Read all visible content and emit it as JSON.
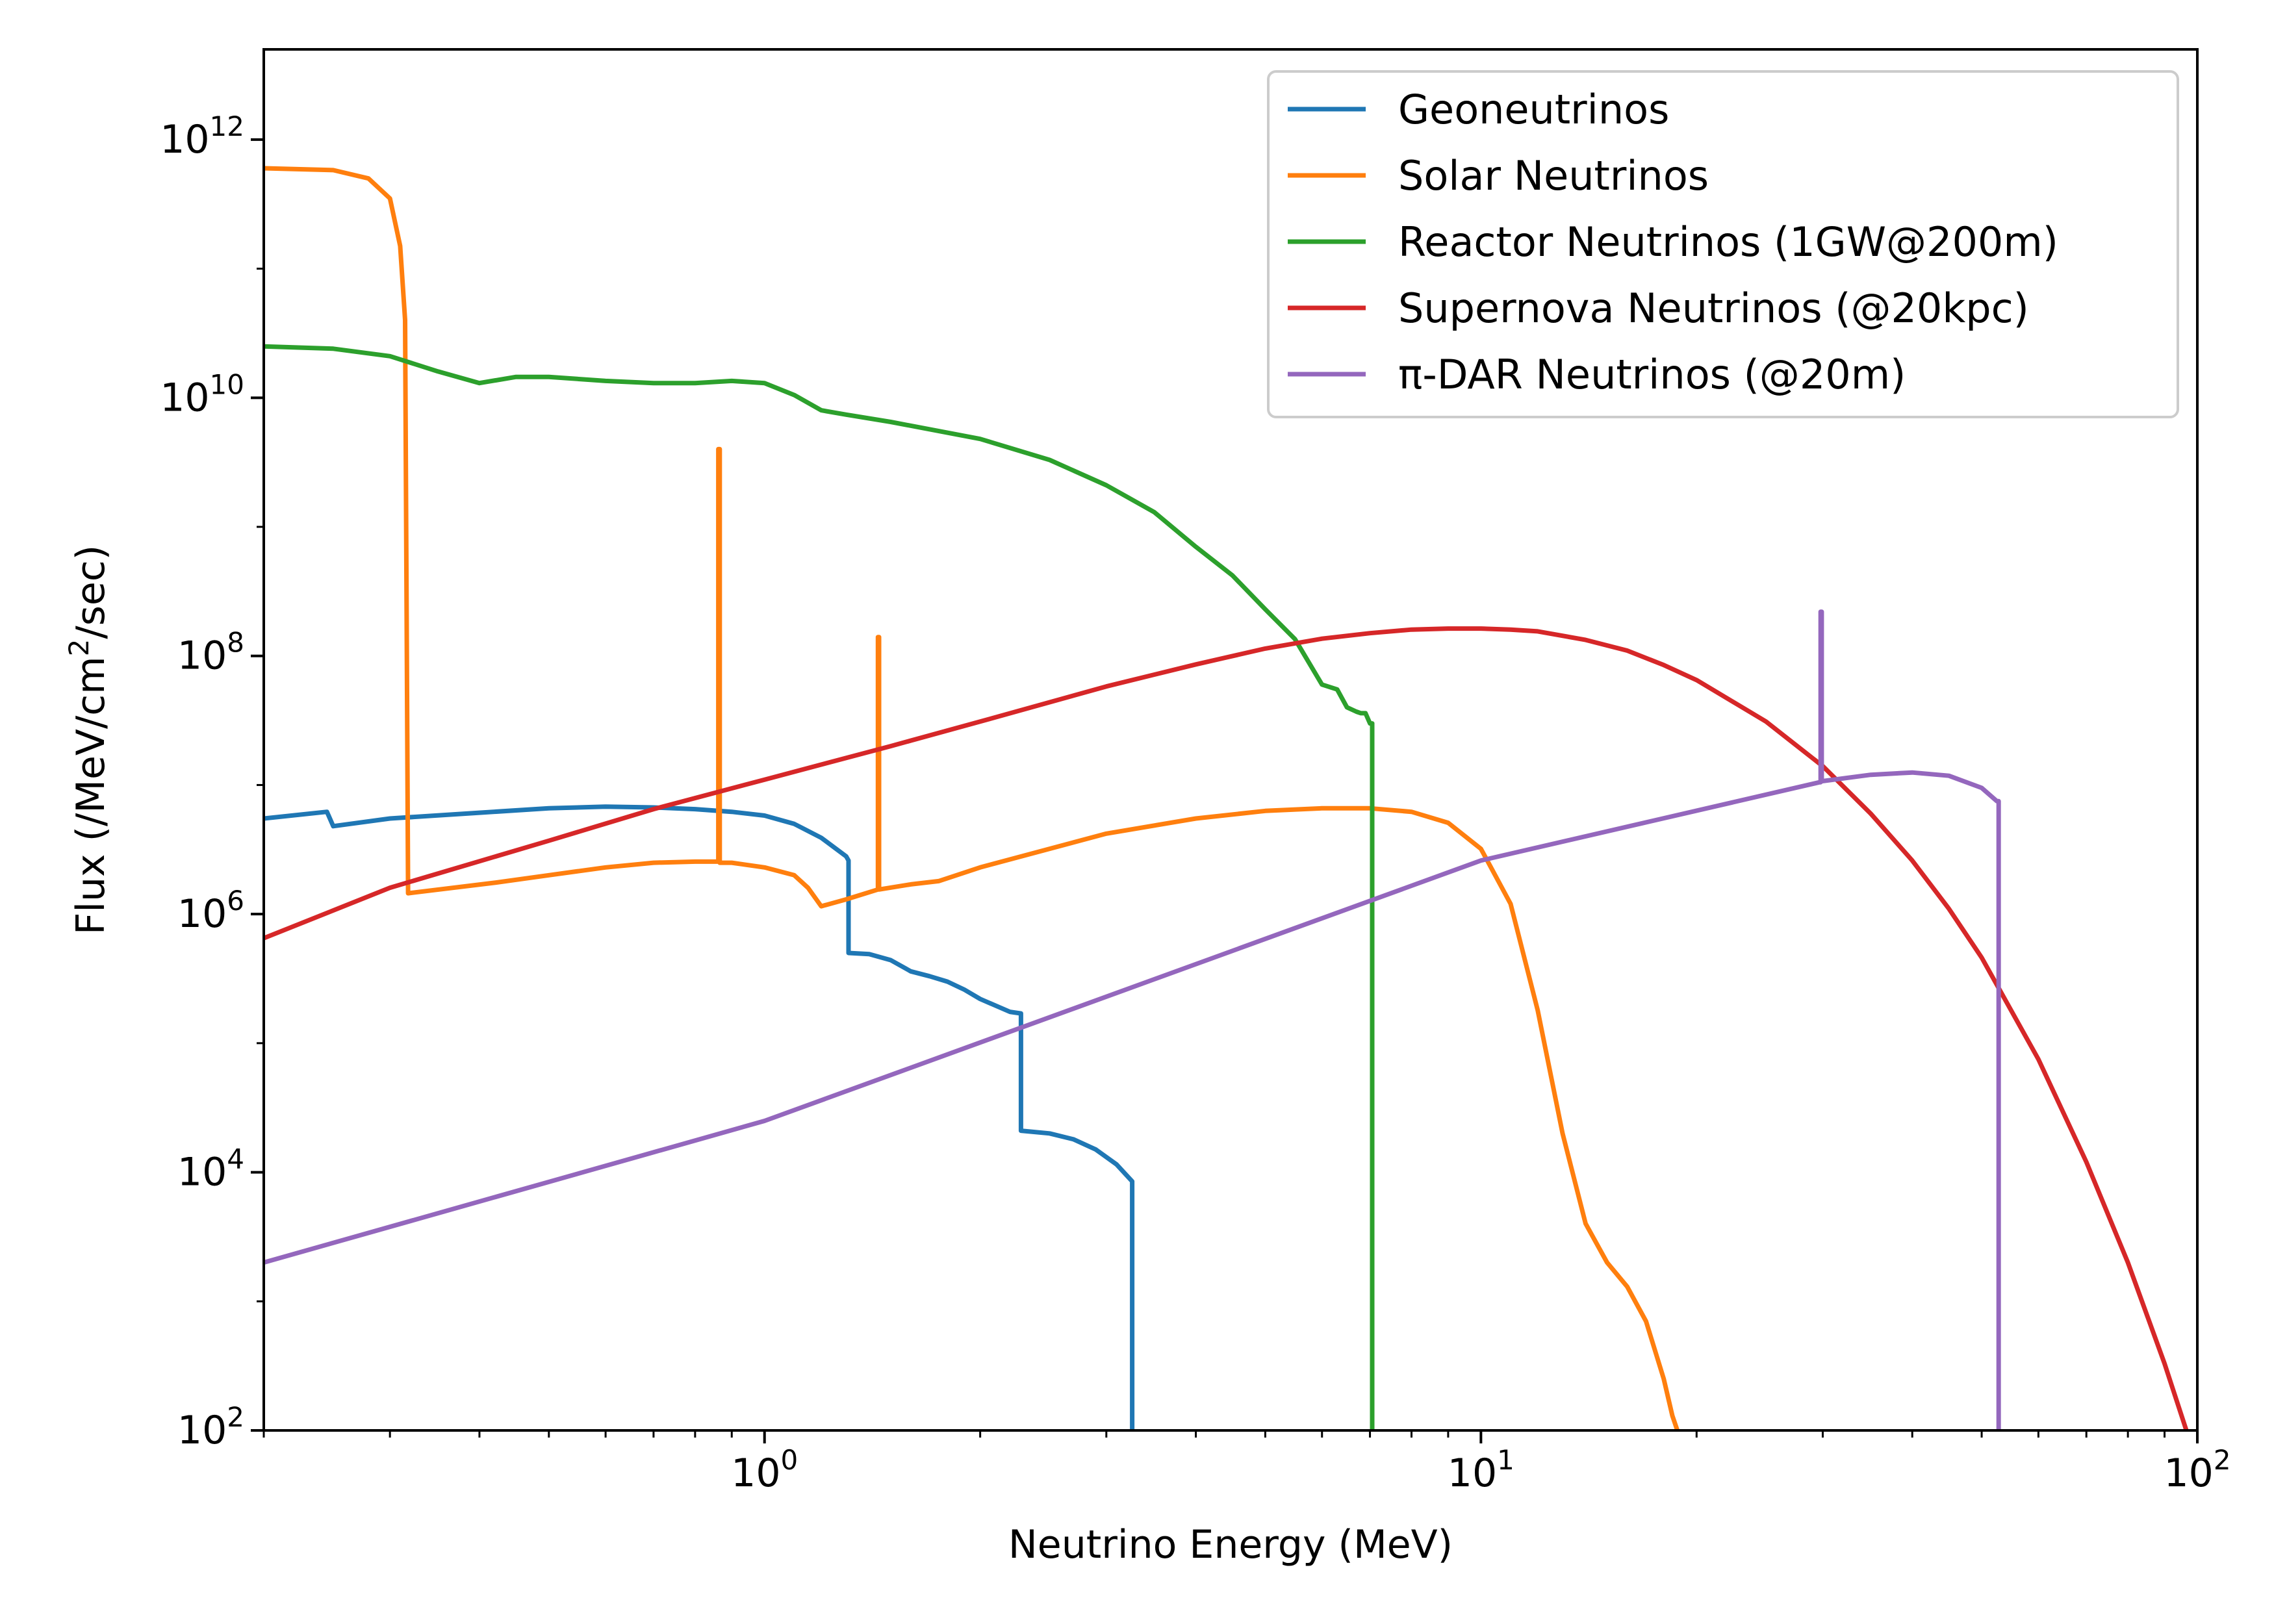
{
  "chart_data": {
    "type": "line",
    "title": "",
    "xlabel": "Neutrino Energy (MeV)",
    "ylabel_parts": {
      "before": "Flux (/MeV/cm",
      "sup": "2",
      "after": "/sec)"
    },
    "xscale": "log",
    "yscale": "log",
    "xlim": [
      0.2,
      100
    ],
    "ylim": [
      100,
      5000000000000.0
    ],
    "grid": false,
    "legend_position": "top-right",
    "x_ticks": [
      {
        "value": 1,
        "base": "10",
        "exp": "0"
      },
      {
        "value": 10,
        "base": "10",
        "exp": "1"
      },
      {
        "value": 100,
        "base": "10",
        "exp": "2"
      }
    ],
    "y_ticks": [
      {
        "value": 100,
        "base": "10",
        "exp": "2"
      },
      {
        "value": 10000,
        "base": "10",
        "exp": "4"
      },
      {
        "value": 1000000,
        "base": "10",
        "exp": "6"
      },
      {
        "value": 100000000,
        "base": "10",
        "exp": "8"
      },
      {
        "value": 10000000000,
        "base": "10",
        "exp": "10"
      },
      {
        "value": 1000000000000,
        "base": "10",
        "exp": "12"
      }
    ],
    "series": [
      {
        "name": "Geoneutrinos",
        "color": "#1f77b4",
        "x": [
          0.2,
          0.245,
          0.25,
          0.3,
          0.4,
          0.5,
          0.6,
          0.7,
          0.8,
          0.9,
          1.0,
          1.1,
          1.2,
          1.3,
          1.31,
          1.31,
          1.4,
          1.5,
          1.6,
          1.7,
          1.8,
          1.9,
          2.0,
          2.2,
          2.28,
          2.28,
          2.5,
          2.7,
          2.9,
          3.1,
          3.26,
          3.26
        ],
        "y": [
          5500000.0,
          6200000.0,
          4800000.0,
          5500000.0,
          6100000.0,
          6600000.0,
          6800000.0,
          6700000.0,
          6500000.0,
          6200000.0,
          5800000.0,
          5000000.0,
          3900000.0,
          2800000.0,
          2600000.0,
          500000.0,
          490000.0,
          440000.0,
          360000.0,
          330000.0,
          300000.0,
          260000.0,
          220000.0,
          175000.0,
          170000.0,
          21000.0,
          20000.0,
          18000.0,
          15000.0,
          11500.0,
          8500.0,
          100
        ]
      },
      {
        "name": "Solar Neutrinos",
        "color": "#ff7f0e",
        "x": [
          0.2,
          0.25,
          0.28,
          0.3,
          0.31,
          0.315,
          0.318,
          0.42,
          0.42,
          0.5,
          0.6,
          0.7,
          0.8,
          0.862,
          0.862,
          0.866,
          0.866,
          0.9,
          1.0,
          1.1,
          1.15,
          1.2,
          1.3,
          1.44,
          1.44,
          1.445,
          1.445,
          1.6,
          1.75,
          2.0,
          3.0,
          4.0,
          5.0,
          6.0,
          7.0,
          8.0,
          9.0,
          10.0,
          11.0,
          12.0,
          13.0,
          14.0,
          15.0,
          16.0,
          17.0,
          18.0,
          18.5,
          18.8
        ],
        "y": [
          600000000000.0,
          580000000000.0,
          500000000000.0,
          350000000000.0,
          150000000000.0,
          40000000000.0,
          1450000.0,
          1750000.0,
          1750000.0,
          2000000.0,
          2300000.0,
          2500000.0,
          2550000.0,
          2550000.0,
          4000000000.0,
          4000000000.0,
          2500000.0,
          2500000.0,
          2300000.0,
          2000000.0,
          1600000.0,
          1150000.0,
          1300000.0,
          1550000.0,
          140000000.0,
          140000000.0,
          1550000.0,
          1700000.0,
          1800000.0,
          2300000.0,
          4200000.0,
          5500000.0,
          6300000.0,
          6600000.0,
          6600000.0,
          6200000.0,
          5100000.0,
          3200000.0,
          1200000.0,
          180000.0,
          20000.0,
          4000.0,
          2000.0,
          1300.0,
          700,
          250,
          130,
          100
        ]
      },
      {
        "name": "Reactor Neutrinos (1GW@200m)",
        "color": "#2ca02c",
        "x": [
          0.2,
          0.25,
          0.3,
          0.35,
          0.4,
          0.45,
          0.5,
          0.6,
          0.7,
          0.8,
          0.9,
          1.0,
          1.1,
          1.2,
          1.3,
          1.5,
          2.0,
          2.5,
          3.0,
          3.5,
          4.0,
          4.5,
          5.0,
          5.5,
          6.0,
          6.3,
          6.5,
          6.7,
          6.8,
          6.9,
          7.0,
          7.05,
          7.05
        ],
        "y": [
          25000000000.0,
          24000000000.0,
          21000000000.0,
          16000000000.0,
          13000000000.0,
          14500000000.0,
          14500000000.0,
          13500000000.0,
          13000000000.0,
          13000000000.0,
          13500000000.0,
          13000000000.0,
          10500000000.0,
          8000000000.0,
          7400000000.0,
          6500000000.0,
          4800000000.0,
          3300000000.0,
          2100000000.0,
          1300000000.0,
          700000000.0,
          420000000.0,
          230000000.0,
          135000000.0,
          60000000.0,
          55000000.0,
          40000000.0,
          37000000.0,
          36000000.0,
          36000000.0,
          30000000.0,
          30000000.0,
          100
        ]
      },
      {
        "name": "Supernova Neutrinos (@20kpc)",
        "color": "#d62728",
        "x": [
          0.2,
          0.3,
          0.5,
          0.7,
          1.0,
          1.5,
          2.0,
          3.0,
          4.0,
          5.0,
          6.0,
          7.0,
          8.0,
          9.0,
          10.0,
          11.0,
          12.0,
          14.0,
          16.0,
          18.0,
          20.0,
          25.0,
          30.0,
          35.0,
          40.0,
          45.0,
          50.0,
          60.0,
          70.0,
          80.0,
          90.0,
          100.0
        ],
        "y": [
          650000.0,
          1600000.0,
          3700000.0,
          6500000.0,
          11000000.0,
          20000000.0,
          31000000.0,
          58000000.0,
          86000000.0,
          114000000.0,
          136000000.0,
          150000000.0,
          160000000.0,
          163000000.0,
          163000000.0,
          160000000.0,
          155000000.0,
          133000000.0,
          110000000.0,
          85000000.0,
          65000000.0,
          31000000.0,
          14000000.0,
          6000000.0,
          2600000.0,
          1100000.0,
          460000.0,
          75000.0,
          12000.0,
          2000.0,
          330,
          55
        ]
      },
      {
        "name": "π-DAR Neutrinos (@20m)",
        "color": "#9467bd",
        "x": [
          0.2,
          1.0,
          10.0,
          29.7,
          29.8,
          29.8,
          29.9,
          29.9,
          35.0,
          40.0,
          45.0,
          50.0,
          52.5,
          52.8,
          52.8
        ],
        "y": [
          2000.0,
          25000.0,
          2600000.0,
          10500000.0,
          10500000.0,
          220000000.0,
          220000000.0,
          10700000.0,
          12000000.0,
          12500000.0,
          11800000.0,
          9500000.0,
          7500000.0,
          7500000.0,
          100
        ]
      }
    ]
  }
}
